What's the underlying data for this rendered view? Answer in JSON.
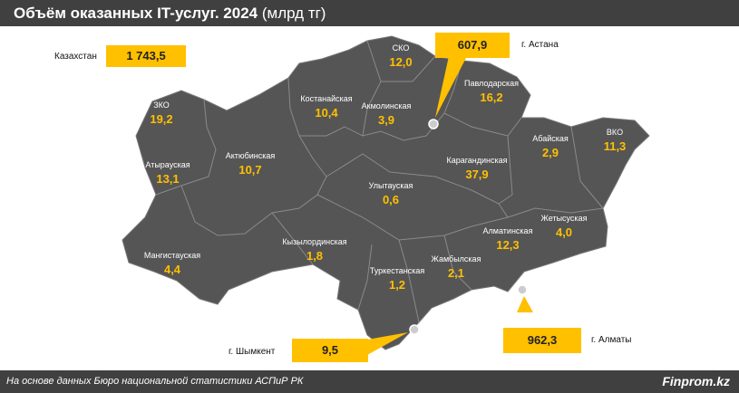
{
  "title": {
    "bold": "Объём оказанных IT-услуг. 2024",
    "unit": "(млрд тг)"
  },
  "total": {
    "label": "Казахстан",
    "value": "1 743,5"
  },
  "cities": [
    {
      "name": "г. Астана",
      "value": "607,9"
    },
    {
      "name": "г. Алматы",
      "value": "962,3"
    },
    {
      "name": "г. Шымкент",
      "value": "9,5"
    }
  ],
  "regions": [
    {
      "name": "ЗКО",
      "value": "19,2"
    },
    {
      "name": "Атырауская",
      "value": "13,1"
    },
    {
      "name": "Мангистауская",
      "value": "4,4"
    },
    {
      "name": "Актюбинская",
      "value": "10,7"
    },
    {
      "name": "Костанайская",
      "value": "10,4"
    },
    {
      "name": "СКО",
      "value": "12,0"
    },
    {
      "name": "Акмолинская",
      "value": "3,9"
    },
    {
      "name": "Павлодарская",
      "value": "16,2"
    },
    {
      "name": "Абайская",
      "value": "2,9"
    },
    {
      "name": "ВКО",
      "value": "11,3"
    },
    {
      "name": "Карагандинская",
      "value": "37,9"
    },
    {
      "name": "Улытауская",
      "value": "0,6"
    },
    {
      "name": "Кызылординская",
      "value": "1,8"
    },
    {
      "name": "Туркестанская",
      "value": "1,2"
    },
    {
      "name": "Жамбылская",
      "value": "2,1"
    },
    {
      "name": "Алматинская",
      "value": "12,3"
    },
    {
      "name": "Жетысуская",
      "value": "4,0"
    }
  ],
  "colors": {
    "map": "#555555",
    "accent": "#ffc000",
    "bar": "#404040"
  },
  "footer": {
    "source": "На основе данных Бюро национальной статистики АСПиР РК",
    "brand": "Finprom.kz"
  }
}
